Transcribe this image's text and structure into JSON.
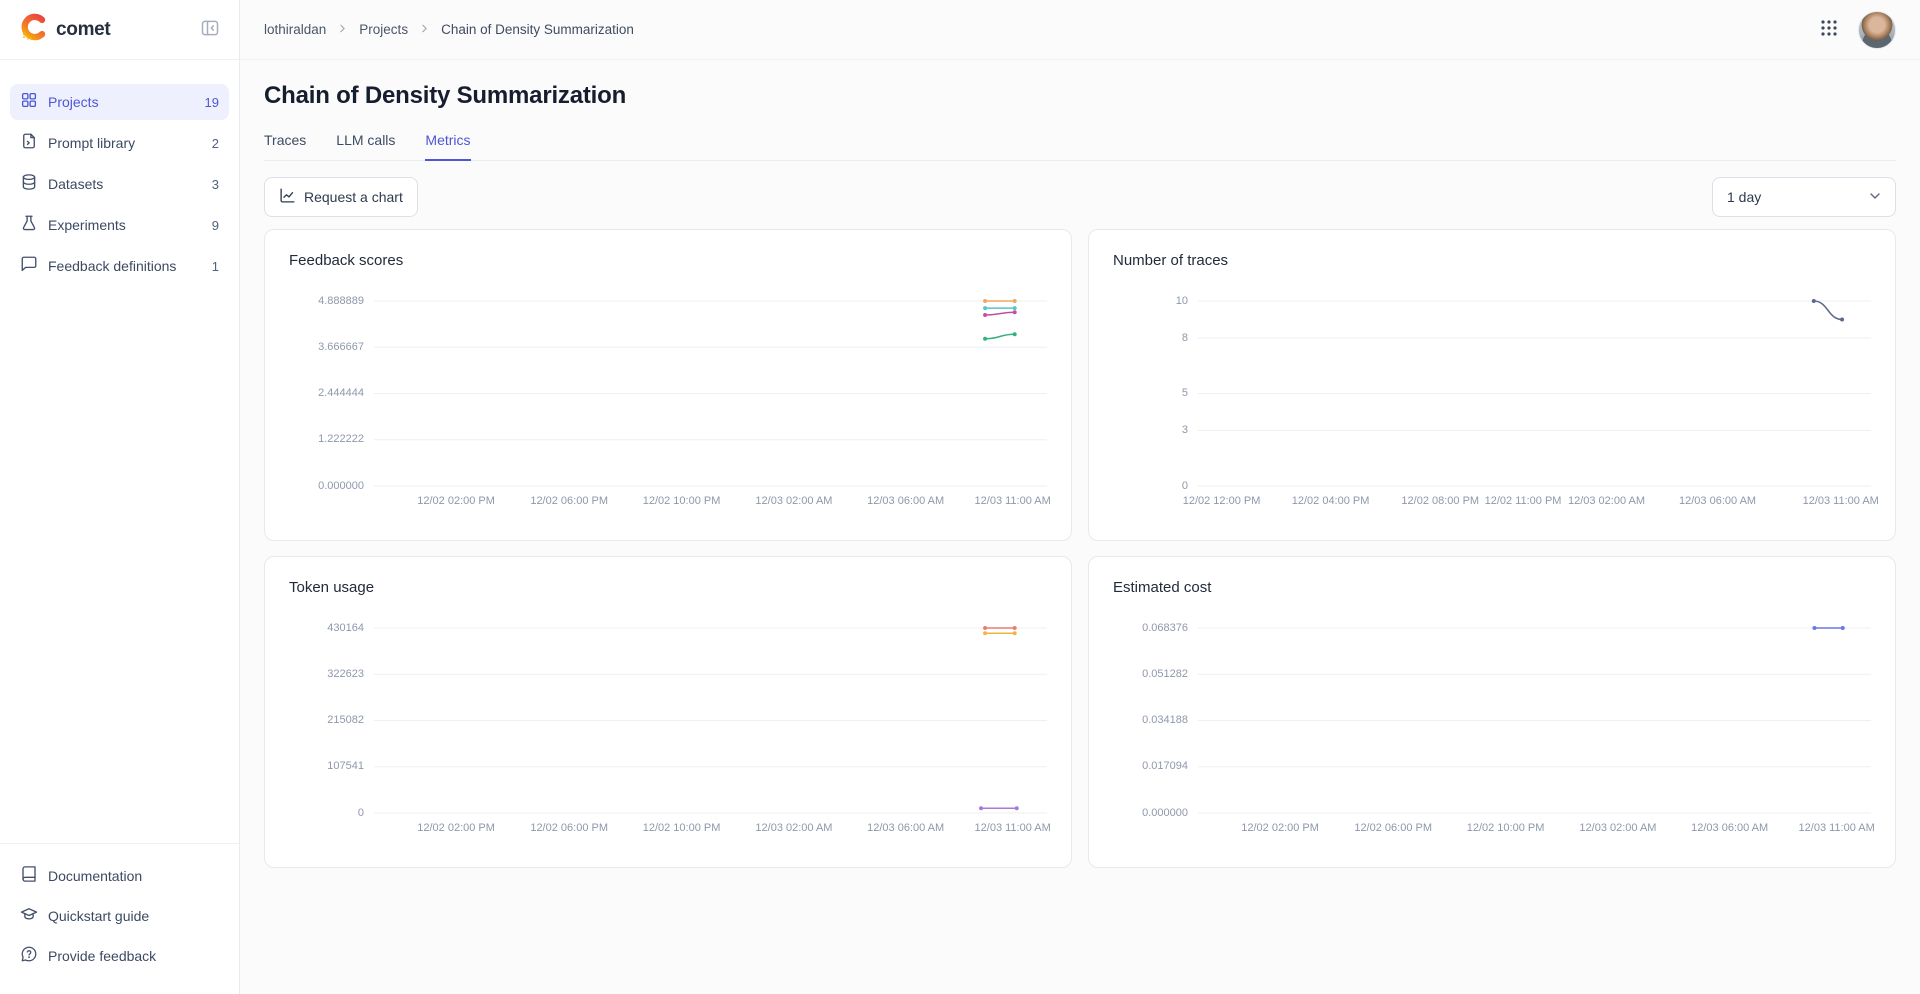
{
  "brand": {
    "name": "comet"
  },
  "colors": {
    "accent": "#4C56D6",
    "grid_line": "#EDEFF3",
    "axis_label": "#8E98AB"
  },
  "sidebar": {
    "items": [
      {
        "label": "Projects",
        "count": "19",
        "icon": "projects-grid-icon",
        "active": true
      },
      {
        "label": "Prompt library",
        "count": "2",
        "icon": "prompt-file-icon",
        "active": false
      },
      {
        "label": "Datasets",
        "count": "3",
        "icon": "database-icon",
        "active": false
      },
      {
        "label": "Experiments",
        "count": "9",
        "icon": "flask-icon",
        "active": false
      },
      {
        "label": "Feedback definitions",
        "count": "1",
        "icon": "message-icon",
        "active": false
      }
    ],
    "footer_items": [
      {
        "label": "Documentation",
        "icon": "book-icon"
      },
      {
        "label": "Quickstart guide",
        "icon": "graduation-cap-icon"
      },
      {
        "label": "Provide feedback",
        "icon": "feedback-bubble-icon"
      }
    ]
  },
  "header": {
    "breadcrumb": {
      "0": "lothiraldan",
      "1": "Projects",
      "2": "Chain of Density Summarization"
    }
  },
  "page": {
    "title": "Chain of Density Summarization",
    "tabs": {
      "0": {
        "label": "Traces"
      },
      "1": {
        "label": "LLM calls"
      },
      "2": {
        "label": "Metrics"
      }
    },
    "active_tab": "Metrics",
    "request_chart_label": "Request a chart",
    "range_selected": "1 day"
  },
  "chart_data": [
    {
      "type": "line",
      "title": "Feedback scores",
      "ymin": 0,
      "ymax": 4.888889,
      "grid": "horizontal",
      "legend": "none",
      "y_ticks": [
        {
          "label": "0.000000",
          "value": 0
        },
        {
          "label": "1.222222",
          "value": 1.222222
        },
        {
          "label": "2.444444",
          "value": 2.444444
        },
        {
          "label": "3.666667",
          "value": 3.666667
        },
        {
          "label": "4.888889",
          "value": 4.888889
        }
      ],
      "x_ticks": [
        {
          "label": "12/02 02:00 PM",
          "x": 0.122
        },
        {
          "label": "12/02 06:00 PM",
          "x": 0.29
        },
        {
          "label": "12/02 10:00 PM",
          "x": 0.457
        },
        {
          "label": "12/03 02:00 AM",
          "x": 0.624
        },
        {
          "label": "12/03 06:00 AM",
          "x": 0.79
        },
        {
          "label": "12/03 11:00 AM",
          "x": 0.949
        }
      ],
      "series": [
        {
          "color": "#F4A664",
          "points": [
            {
              "x": 0.908,
              "y": 4.888889
            },
            {
              "x": 0.952,
              "y": 4.888889
            }
          ]
        },
        {
          "color": "#54C8C4",
          "points": [
            {
              "x": 0.908,
              "y": 4.7
            },
            {
              "x": 0.952,
              "y": 4.7
            }
          ]
        },
        {
          "color": "#C04FA8",
          "points": [
            {
              "x": 0.908,
              "y": 4.52
            },
            {
              "x": 0.952,
              "y": 4.59
            }
          ]
        },
        {
          "color": "#34B27D",
          "points": [
            {
              "x": 0.908,
              "y": 3.89
            },
            {
              "x": 0.952,
              "y": 4.01
            }
          ]
        }
      ]
    },
    {
      "type": "line",
      "title": "Number of traces",
      "ymin": 0,
      "ymax": 10,
      "grid": "horizontal",
      "legend": "none",
      "y_ticks": [
        {
          "label": "0",
          "value": 0
        },
        {
          "label": "3",
          "value": 3
        },
        {
          "label": "5",
          "value": 5
        },
        {
          "label": "8",
          "value": 8
        },
        {
          "label": "10",
          "value": 10
        }
      ],
      "x_ticks": [
        {
          "label": "12/02 12:00 PM",
          "x": 0.035
        },
        {
          "label": "12/02 04:00 PM",
          "x": 0.197
        },
        {
          "label": "12/02 08:00 PM",
          "x": 0.36
        },
        {
          "label": "12/02 11:00 PM",
          "x": 0.483
        },
        {
          "label": "12/03 02:00 AM",
          "x": 0.607
        },
        {
          "label": "12/03 06:00 AM",
          "x": 0.772
        },
        {
          "label": "12/03 11:00 AM",
          "x": 0.955
        }
      ],
      "series": [
        {
          "color": "#5C6A8B",
          "points": [
            {
              "x": 0.915,
              "y": 10
            },
            {
              "x": 0.957,
              "y": 9
            }
          ]
        }
      ]
    },
    {
      "type": "line",
      "title": "Token usage",
      "ymin": 0,
      "ymax": 430164,
      "grid": "horizontal",
      "legend": "none",
      "y_ticks": [
        {
          "label": "0",
          "value": 0
        },
        {
          "label": "107541",
          "value": 107541
        },
        {
          "label": "215082",
          "value": 215082
        },
        {
          "label": "322623",
          "value": 322623
        },
        {
          "label": "430164",
          "value": 430164
        }
      ],
      "x_ticks": [
        {
          "label": "12/02 02:00 PM",
          "x": 0.122
        },
        {
          "label": "12/02 06:00 PM",
          "x": 0.29
        },
        {
          "label": "12/02 10:00 PM",
          "x": 0.457
        },
        {
          "label": "12/03 02:00 AM",
          "x": 0.624
        },
        {
          "label": "12/03 06:00 AM",
          "x": 0.79
        },
        {
          "label": "12/03 11:00 AM",
          "x": 0.949
        }
      ],
      "series": [
        {
          "color": "#E97C79",
          "points": [
            {
              "x": 0.908,
              "y": 430164
            },
            {
              "x": 0.952,
              "y": 430164
            }
          ]
        },
        {
          "color": "#F2B540",
          "points": [
            {
              "x": 0.908,
              "y": 418000
            },
            {
              "x": 0.952,
              "y": 418000
            }
          ]
        },
        {
          "color": "#A779DB",
          "points": [
            {
              "x": 0.902,
              "y": 11000
            },
            {
              "x": 0.955,
              "y": 11000
            }
          ]
        }
      ]
    },
    {
      "type": "line",
      "title": "Estimated cost",
      "ymin": 0,
      "ymax": 0.068376,
      "grid": "horizontal",
      "legend": "none",
      "y_ticks": [
        {
          "label": "0.000000",
          "value": 0
        },
        {
          "label": "0.017094",
          "value": 0.017094
        },
        {
          "label": "0.034188",
          "value": 0.034188
        },
        {
          "label": "0.051282",
          "value": 0.051282
        },
        {
          "label": "0.068376",
          "value": 0.068376
        }
      ],
      "x_ticks": [
        {
          "label": "12/02 02:00 PM",
          "x": 0.122
        },
        {
          "label": "12/02 06:00 PM",
          "x": 0.29
        },
        {
          "label": "12/02 10:00 PM",
          "x": 0.457
        },
        {
          "label": "12/03 02:00 AM",
          "x": 0.624
        },
        {
          "label": "12/03 06:00 AM",
          "x": 0.79
        },
        {
          "label": "12/03 11:00 AM",
          "x": 0.949
        }
      ],
      "series": [
        {
          "color": "#6C76E5",
          "points": [
            {
              "x": 0.916,
              "y": 0.068376
            },
            {
              "x": 0.958,
              "y": 0.068376
            }
          ]
        }
      ]
    }
  ]
}
